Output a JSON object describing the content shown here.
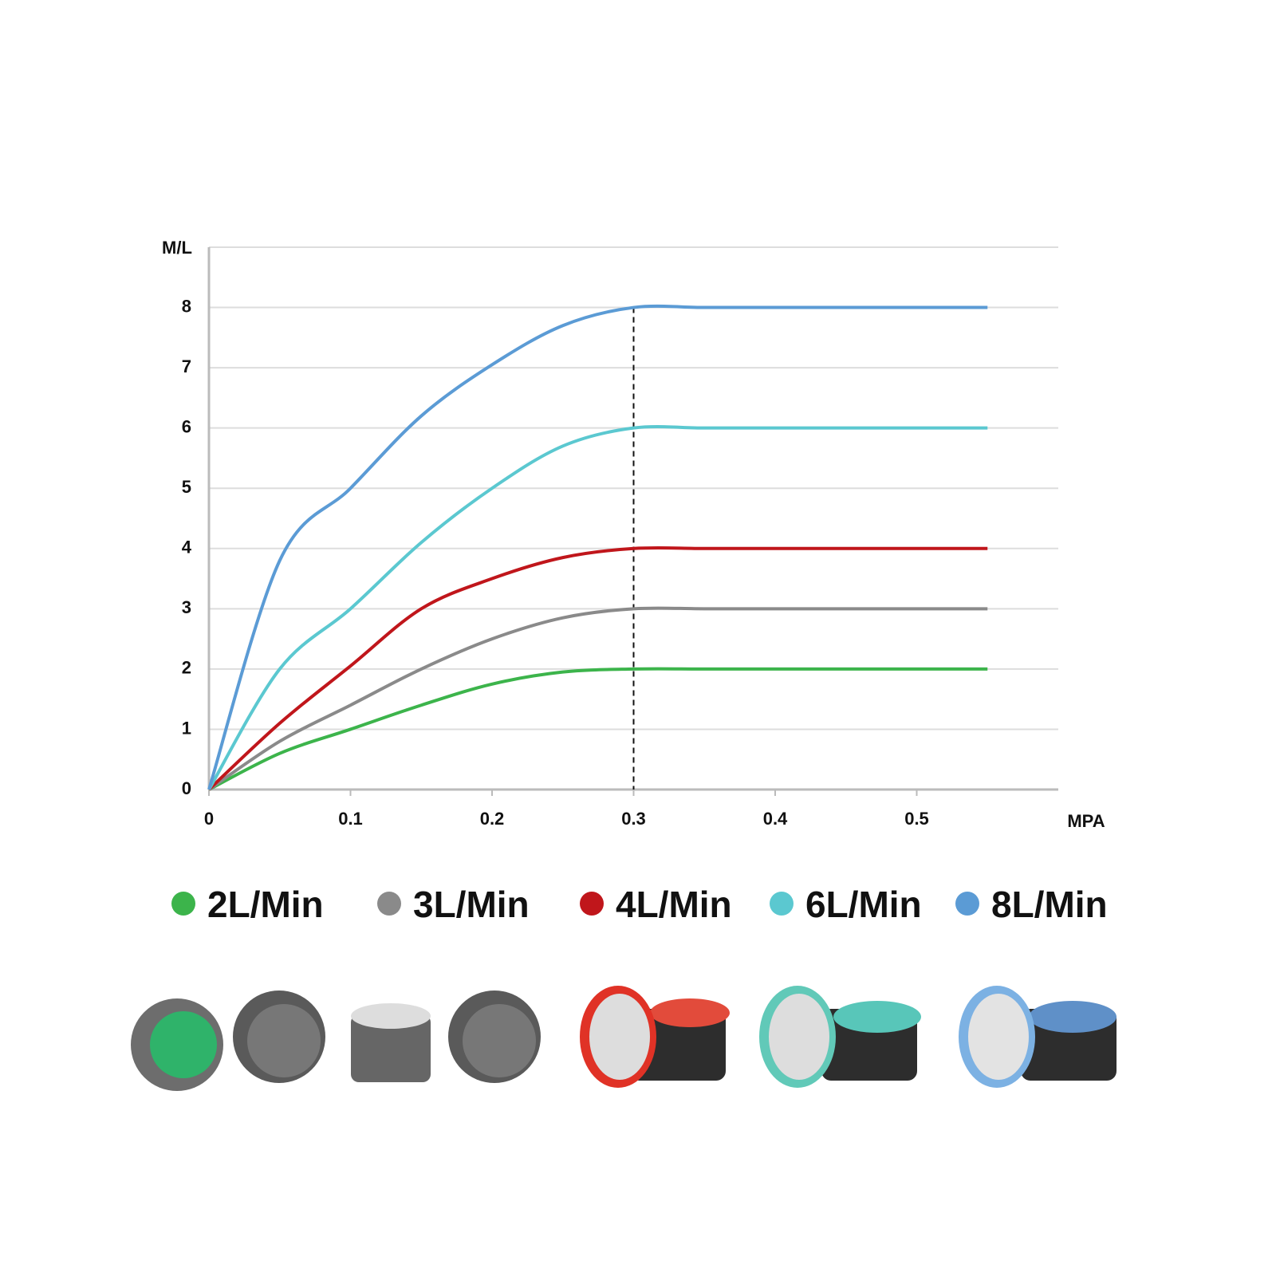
{
  "chart_data": {
    "type": "line",
    "y_label": "M/L",
    "x_label": "MPA",
    "x": [
      0,
      0.05,
      0.1,
      0.15,
      0.2,
      0.25,
      0.3,
      0.35,
      0.4,
      0.45,
      0.5,
      0.55
    ],
    "series": [
      {
        "name": "2L/Min",
        "color": "#3cb44b",
        "values": [
          0,
          0.6,
          1.0,
          1.4,
          1.75,
          1.95,
          2,
          2,
          2,
          2,
          2,
          2
        ]
      },
      {
        "name": "3L/Min",
        "color": "#8a8a8a",
        "values": [
          0,
          0.8,
          1.4,
          2.0,
          2.5,
          2.85,
          3,
          3,
          3,
          3,
          3,
          3
        ]
      },
      {
        "name": "4L/Min",
        "color": "#c0161b",
        "values": [
          0,
          1.1,
          2.05,
          3.0,
          3.5,
          3.85,
          4,
          4,
          4,
          4,
          4,
          4
        ]
      },
      {
        "name": "6L/Min",
        "color": "#5bc8d0",
        "values": [
          0,
          2.0,
          3.0,
          4.1,
          5.0,
          5.7,
          6,
          6,
          6,
          6,
          6,
          6
        ]
      },
      {
        "name": "8L/Min",
        "color": "#5b9bd5",
        "values": [
          0,
          3.8,
          5.0,
          6.2,
          7.05,
          7.7,
          8,
          8,
          8,
          8,
          8,
          8
        ]
      }
    ],
    "xlim": [
      0,
      0.6
    ],
    "xticks": [
      0,
      0.1,
      0.2,
      0.3,
      0.4,
      0.5
    ],
    "ylim": [
      0,
      9
    ],
    "yticks": [
      0,
      1,
      2,
      3,
      4,
      5,
      6,
      7,
      8
    ],
    "grid": true,
    "vline_x": 0.3
  }
}
